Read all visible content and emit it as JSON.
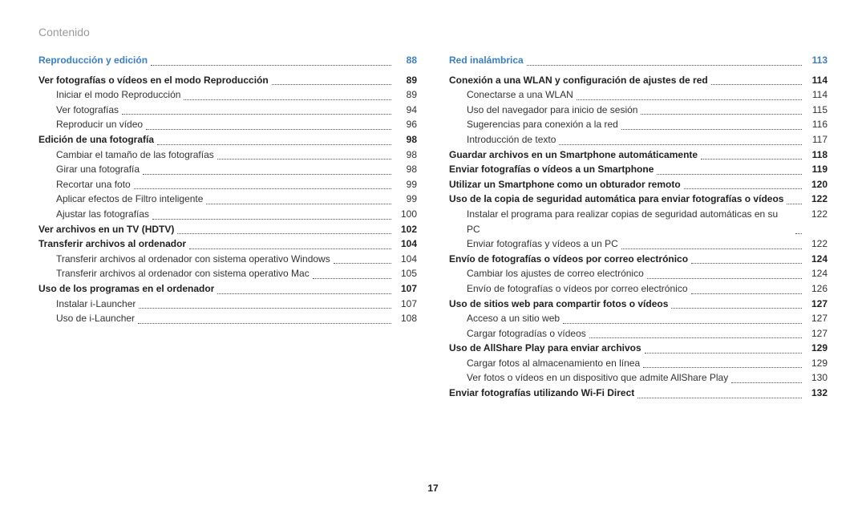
{
  "header": "Contenido",
  "page_number": "17",
  "colors": {
    "section_title": "#3b7fc4",
    "header_text": "#999999",
    "body_text": "#333333",
    "leader": "#555555",
    "background": "#ffffff"
  },
  "typography": {
    "header_fontsize_pt": 11,
    "section_fontsize_pt": 10,
    "row_fontsize_pt": 9,
    "font_family": "Segoe UI / Myriad"
  },
  "left": {
    "section": {
      "label": "Reproducción y edición",
      "page": "88"
    },
    "items": [
      {
        "level": "bold",
        "label": "Ver fotografías o vídeos en el modo Reproducción",
        "page": "89"
      },
      {
        "level": "sub",
        "label": "Iniciar el modo Reproducción",
        "page": "89"
      },
      {
        "level": "sub",
        "label": "Ver fotografías",
        "page": "94"
      },
      {
        "level": "sub",
        "label": "Reproducir un vídeo",
        "page": "96"
      },
      {
        "level": "bold",
        "label": "Edición de una fotografía",
        "page": "98"
      },
      {
        "level": "sub",
        "label": "Cambiar el tamaño de las fotografías",
        "page": "98"
      },
      {
        "level": "sub",
        "label": "Girar una fotografía",
        "page": "98"
      },
      {
        "level": "sub",
        "label": "Recortar una foto",
        "page": "99"
      },
      {
        "level": "sub",
        "label": "Aplicar efectos de Filtro inteligente",
        "page": "99"
      },
      {
        "level": "sub",
        "label": "Ajustar las fotografías",
        "page": "100"
      },
      {
        "level": "bold",
        "label": "Ver archivos en un TV (HDTV)",
        "page": "102"
      },
      {
        "level": "bold",
        "label": "Transferir archivos al ordenador",
        "page": "104"
      },
      {
        "level": "sub",
        "label": "Transferir archivos al ordenador con sistema operativo Windows",
        "page": "104"
      },
      {
        "level": "sub",
        "label": "Transferir archivos al ordenador con sistema operativo Mac",
        "page": "105"
      },
      {
        "level": "bold",
        "label": "Uso de los programas en el ordenador",
        "page": "107"
      },
      {
        "level": "sub",
        "label": "Instalar i-Launcher",
        "page": "107"
      },
      {
        "level": "sub",
        "label": "Uso de i-Launcher",
        "page": "108"
      }
    ]
  },
  "right": {
    "section": {
      "label": "Red inalámbrica",
      "page": "113"
    },
    "items": [
      {
        "level": "bold",
        "label": "Conexión a una WLAN y configuración de ajustes de red",
        "page": "114"
      },
      {
        "level": "sub",
        "label": "Conectarse a una WLAN",
        "page": "114"
      },
      {
        "level": "sub",
        "label": "Uso del navegador para inicio de sesión",
        "page": "115"
      },
      {
        "level": "sub",
        "label": "Sugerencias para conexión a la red",
        "page": "116"
      },
      {
        "level": "sub",
        "label": "Introducción de texto",
        "page": "117"
      },
      {
        "level": "bold",
        "label": "Guardar archivos en un Smartphone automáticamente",
        "page": "118"
      },
      {
        "level": "bold",
        "label": "Enviar fotografías o vídeos a un Smartphone",
        "page": "119"
      },
      {
        "level": "bold",
        "label": "Utilizar un Smartphone como un obturador remoto",
        "page": "120"
      },
      {
        "level": "bold",
        "label": "Uso de la copia de seguridad automática para enviar fotografías o vídeos",
        "page": "122"
      },
      {
        "level": "sub",
        "label": "Instalar el programa para realizar copias de seguridad automáticas en su PC",
        "page": "122"
      },
      {
        "level": "sub",
        "label": "Enviar fotografías y vídeos a un PC",
        "page": "122"
      },
      {
        "level": "bold",
        "label": "Envío de fotografías o vídeos por correo electrónico",
        "page": "124"
      },
      {
        "level": "sub",
        "label": "Cambiar los ajustes de correo electrónico",
        "page": "124"
      },
      {
        "level": "sub",
        "label": "Envío de fotografías o vídeos por correo electrónico",
        "page": "126"
      },
      {
        "level": "bold",
        "label": "Uso de sitios web para compartir fotos o vídeos",
        "page": "127"
      },
      {
        "level": "sub",
        "label": "Acceso a un sitio web",
        "page": "127"
      },
      {
        "level": "sub",
        "label": "Cargar fotogradías o vídeos",
        "page": "127"
      },
      {
        "level": "bold",
        "label": "Uso de AllShare Play para enviar archivos",
        "page": "129"
      },
      {
        "level": "sub",
        "label": "Cargar fotos al almacenamiento en línea",
        "page": "129"
      },
      {
        "level": "sub",
        "label": "Ver fotos o vídeos en un dispositivo que admite AllShare Play",
        "page": "130"
      },
      {
        "level": "bold",
        "label": "Enviar fotografías utilizando Wi-Fi Direct",
        "page": "132"
      }
    ]
  }
}
